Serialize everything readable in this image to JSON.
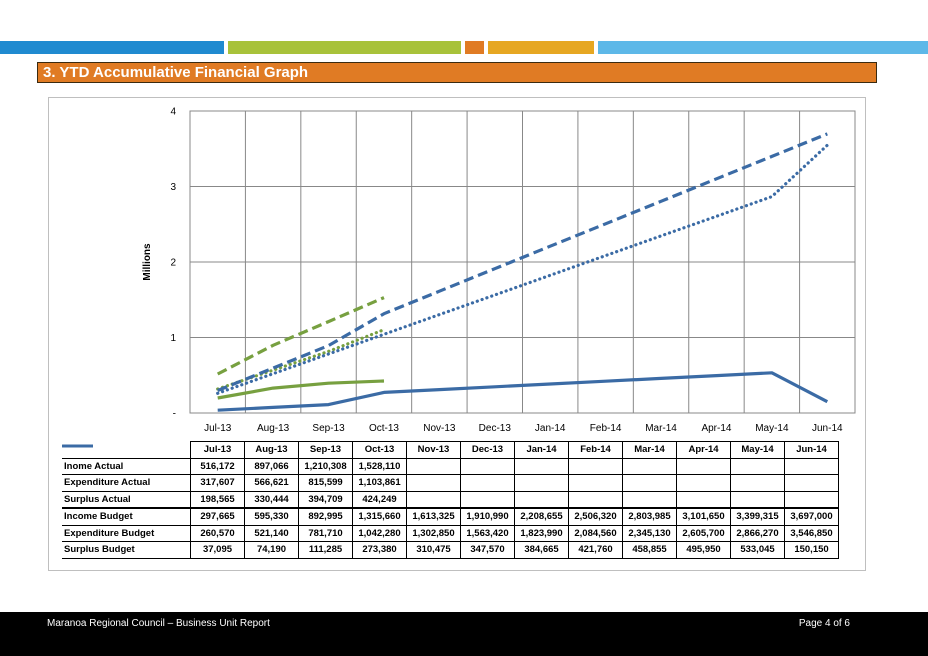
{
  "header": {
    "bar_colors": [
      "#1f8ad0",
      "#a8c23a",
      "#e07b24",
      "#e6a722",
      "#5db8e8"
    ],
    "section_title": "3.  YTD Accumulative Financial Graph",
    "section_color": "#e07b24"
  },
  "chart_data": {
    "type": "line",
    "title": "",
    "xlabel": "",
    "ylabel": "Millions",
    "ylim": [
      0,
      4
    ],
    "yticks": [
      "-",
      "1",
      "2",
      "3",
      "4"
    ],
    "grid": true,
    "categories": [
      "Jul-13",
      "Aug-13",
      "Sep-13",
      "Oct-13",
      "Nov-13",
      "Dec-13",
      "Jan-14",
      "Feb-14",
      "Mar-14",
      "Apr-14",
      "May-14",
      "Jun-14"
    ],
    "series": [
      {
        "name": "Inome Actual",
        "color": "#77a040",
        "style": "dashed",
        "values": [
          516172,
          897066,
          1210308,
          1528110,
          null,
          null,
          null,
          null,
          null,
          null,
          null,
          null
        ],
        "labels": [
          "516,172",
          "897,066",
          "1,210,308",
          "1,528,110",
          "",
          "",
          "",
          "",
          "",
          "",
          "",
          ""
        ]
      },
      {
        "name": "Expenditure Actual",
        "color": "#77a040",
        "style": "dotted",
        "values": [
          317607,
          566621,
          815599,
          1103861,
          null,
          null,
          null,
          null,
          null,
          null,
          null,
          null
        ],
        "labels": [
          "317,607",
          "566,621",
          "815,599",
          "1,103,861",
          "",
          "",
          "",
          "",
          "",
          "",
          "",
          ""
        ]
      },
      {
        "name": "Surplus Actual",
        "color": "#77a040",
        "style": "solid",
        "values": [
          198565,
          330444,
          394709,
          424249,
          null,
          null,
          null,
          null,
          null,
          null,
          null,
          null
        ],
        "labels": [
          "198,565",
          "330,444",
          "394,709",
          "424,249",
          "",
          "",
          "",
          "",
          "",
          "",
          "",
          ""
        ]
      },
      {
        "name": "Income Budget",
        "color": "#3b6ba5",
        "style": "dashed",
        "values": [
          297665,
          595330,
          892995,
          1315660,
          1613325,
          1910990,
          2208655,
          2506320,
          2803985,
          3101650,
          3399315,
          3697000
        ],
        "labels": [
          "297,665",
          "595,330",
          "892,995",
          "1,315,660",
          "1,613,325",
          "1,910,990",
          "2,208,655",
          "2,506,320",
          "2,803,985",
          "3,101,650",
          "3,399,315",
          "3,697,000"
        ]
      },
      {
        "name": "Expenditure Budget",
        "color": "#3b6ba5",
        "style": "dotted",
        "values": [
          260570,
          521140,
          781710,
          1042280,
          1302850,
          1563420,
          1823990,
          2084560,
          2345130,
          2605700,
          2866270,
          3546850
        ],
        "labels": [
          "260,570",
          "521,140",
          "781,710",
          "1,042,280",
          "1,302,850",
          "1,563,420",
          "1,823,990",
          "2,084,560",
          "2,345,130",
          "2,605,700",
          "2,866,270",
          "3,546,850"
        ]
      },
      {
        "name": "Surplus Budget",
        "color": "#3b6ba5",
        "style": "solid",
        "values": [
          37095,
          74190,
          111285,
          273380,
          310475,
          347570,
          384665,
          421760,
          458855,
          495950,
          533045,
          150150
        ],
        "labels": [
          "37,095",
          "74,190",
          "111,285",
          "273,380",
          "310,475",
          "347,570",
          "384,665",
          "421,760",
          "458,855",
          "495,950",
          "533,045",
          "150,150"
        ]
      }
    ]
  },
  "footer": {
    "left": "Maranoa Regional Council – Business Unit Report",
    "right": "Page 4 of 6"
  }
}
